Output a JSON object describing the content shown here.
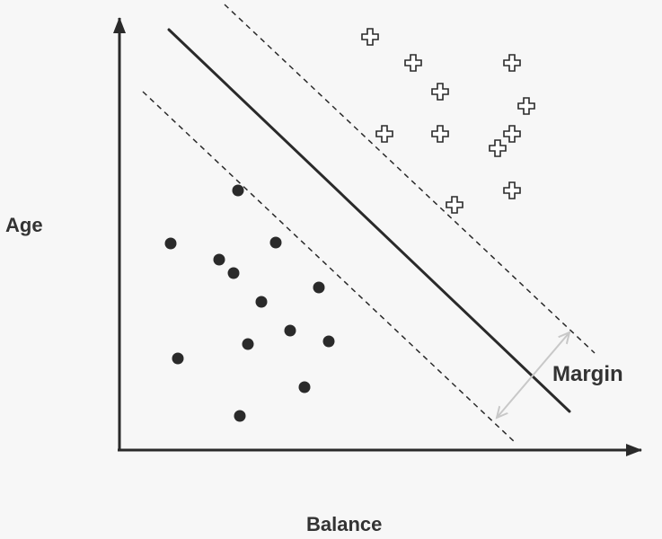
{
  "labels": {
    "y_axis": "Age",
    "x_axis": "Balance",
    "margin": "Margin"
  },
  "colors": {
    "ink": "#2a2a2a",
    "margin_arrow": "#c8c8c8",
    "background": "#f7f7f7"
  },
  "chart_data": {
    "type": "scatter",
    "title": "",
    "xlabel": "Balance",
    "ylabel": "Age",
    "grid": false,
    "legend": "none",
    "series": [
      {
        "marker": "filled-circle",
        "points": [
          [
            265,
            212
          ],
          [
            190,
            271
          ],
          [
            307,
            270
          ],
          [
            244,
            289
          ],
          [
            260,
            304
          ],
          [
            355,
            320
          ],
          [
            291,
            336
          ],
          [
            323,
            368
          ],
          [
            276,
            383
          ],
          [
            366,
            380
          ],
          [
            198,
            399
          ],
          [
            339,
            431
          ],
          [
            267,
            463
          ]
        ]
      },
      {
        "marker": "plus-outline",
        "points": [
          [
            412,
            41
          ],
          [
            460,
            70
          ],
          [
            570,
            70
          ],
          [
            490,
            102
          ],
          [
            586,
            118
          ],
          [
            428,
            149
          ],
          [
            490,
            149
          ],
          [
            570,
            149
          ],
          [
            554,
            165
          ],
          [
            570,
            212
          ],
          [
            506,
            228
          ]
        ]
      }
    ],
    "decision_boundary": {
      "style": "solid",
      "from": [
        188,
        33
      ],
      "to": [
        634,
        458
      ]
    },
    "margin_lines": [
      {
        "style": "dashed",
        "from": [
          250,
          5
        ],
        "to": [
          662,
          393
        ]
      },
      {
        "style": "dashed",
        "from": [
          159,
          102
        ],
        "to": [
          575,
          494
        ]
      }
    ],
    "margin_arrow": {
      "from": [
        553,
        465
      ],
      "to": [
        634,
        370
      ]
    }
  }
}
